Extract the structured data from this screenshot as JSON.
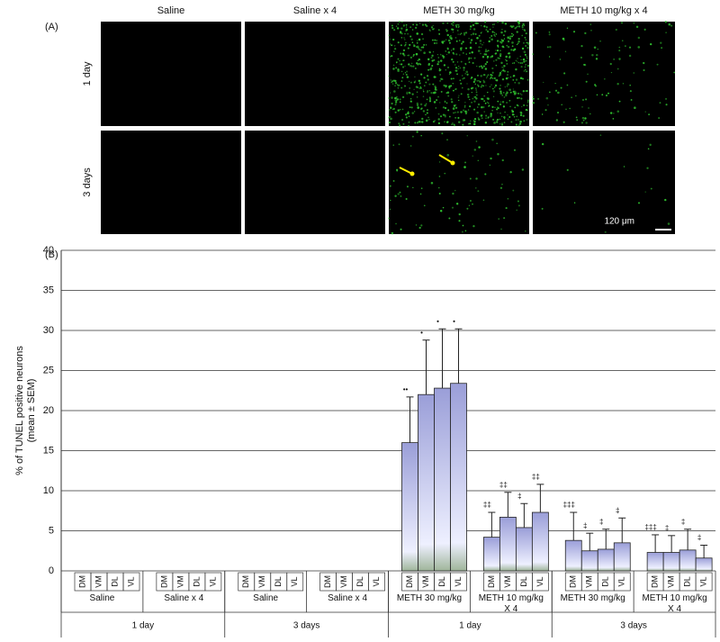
{
  "panel_a": {
    "label": "(A)",
    "columns": [
      "Saline",
      "Saline x 4",
      "METH 30 mg/kg",
      "METH 10 mg/kg x 4"
    ],
    "rows": [
      "1 day",
      "3 days"
    ],
    "scale_bar": "120 μm"
  },
  "chart_data": {
    "type": "bar",
    "label": "(B)",
    "y_label": [
      "% of TUNEL positive neurons",
      "(mean ± SEM)"
    ],
    "categories": [
      "DM",
      "VM",
      "DL",
      "VL",
      "DM",
      "VM",
      "DL",
      "VL",
      "DM",
      "VM",
      "DL",
      "VL",
      "DM",
      "VM",
      "DL",
      "VL",
      "DM",
      "VM",
      "DL",
      "VL",
      "DM",
      "VM",
      "DL",
      "VL",
      "DM",
      "VM",
      "DL",
      "VL",
      "DM",
      "VM",
      "DL",
      "VL"
    ],
    "groups": [
      "Saline",
      "Saline x 4",
      "Saline",
      "Saline x 4",
      "METH 30 mg/kg",
      "METH 10 mg/kg\nX 4",
      "METH 30 mg/kg",
      "METH 10 mg/kg\nX 4"
    ],
    "timepoints": [
      "1 day",
      "3 days",
      "1 day",
      "3 days"
    ],
    "series": [
      {
        "color": "#9a9ed8",
        "values": [
          0,
          0,
          0,
          0,
          0,
          0,
          0,
          0,
          0,
          0,
          0,
          0,
          0,
          0,
          0,
          0,
          16,
          22,
          22.8,
          23.4,
          4.2,
          6.7,
          5.4,
          7.3,
          3.8,
          2.5,
          2.7,
          3.5,
          2.3,
          2.3,
          2.6,
          1.6
        ],
        "errors": [
          0,
          0,
          0,
          0,
          0,
          0,
          0,
          0,
          0,
          0,
          0,
          0,
          0,
          0,
          0,
          0,
          5.7,
          6.8,
          7.4,
          6.8,
          3.1,
          3.1,
          3.0,
          3.5,
          3.5,
          2.2,
          2.5,
          3.1,
          2.2,
          2.1,
          2.6,
          1.6
        ],
        "markers": [
          null,
          null,
          null,
          null,
          null,
          null,
          null,
          null,
          null,
          null,
          null,
          null,
          null,
          null,
          null,
          null,
          "••",
          "•",
          "•",
          "•",
          "‡‡",
          "‡‡",
          "‡",
          "‡‡",
          "‡‡‡",
          "‡",
          "‡",
          "‡",
          "‡‡‡",
          "‡",
          "‡",
          "‡"
        ]
      }
    ],
    "ylim": [
      0,
      40
    ],
    "yticks": [
      0,
      5,
      10,
      15,
      20,
      25,
      30,
      35,
      40
    ],
    "grid": true
  }
}
